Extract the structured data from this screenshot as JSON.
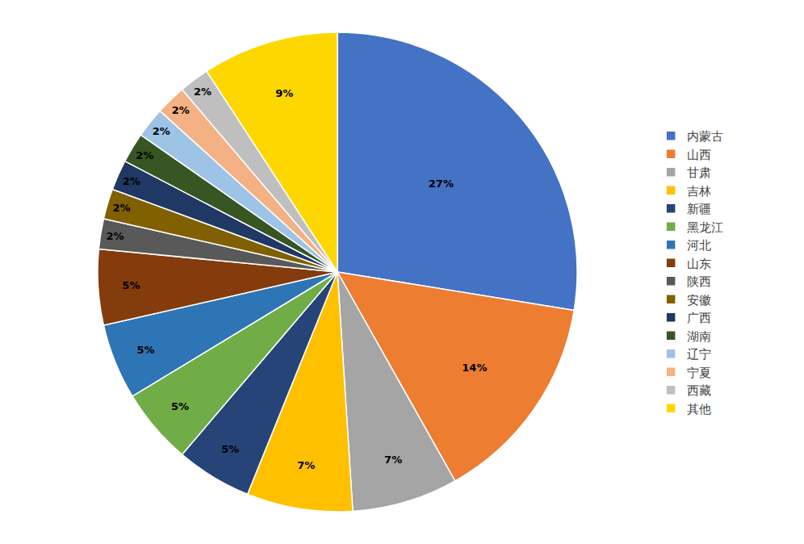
{
  "chart_data": {
    "type": "pie",
    "categories": [
      "内蒙古",
      "山西",
      "甘肃",
      "吉林",
      "新疆",
      "黑龙江",
      "河北",
      "山东",
      "陕西",
      "安徽",
      "广西",
      "湖南",
      "辽宁",
      "宁夏",
      "西藏",
      "其他"
    ],
    "values": [
      27,
      14,
      7,
      7,
      5,
      5,
      5,
      5,
      2,
      2,
      2,
      2,
      2,
      2,
      2,
      9
    ],
    "value_labels": [
      "27%",
      "14%",
      "7%",
      "7%",
      "5%",
      "5%",
      "5%",
      "5%",
      "2%",
      "2%",
      "2%",
      "2%",
      "2%",
      "2%",
      "2%",
      "9%"
    ],
    "colors": [
      "#4472C4",
      "#ED7D31",
      "#A5A5A5",
      "#FFC000",
      "#264478",
      "#70AD47",
      "#2E75B6",
      "#843C0C",
      "#595959",
      "#806000",
      "#1F3864",
      "#375623",
      "#9DC3E6",
      "#F4B183",
      "#BFBFBF",
      "#FFD700"
    ],
    "data_labels": true,
    "legend": "right"
  }
}
